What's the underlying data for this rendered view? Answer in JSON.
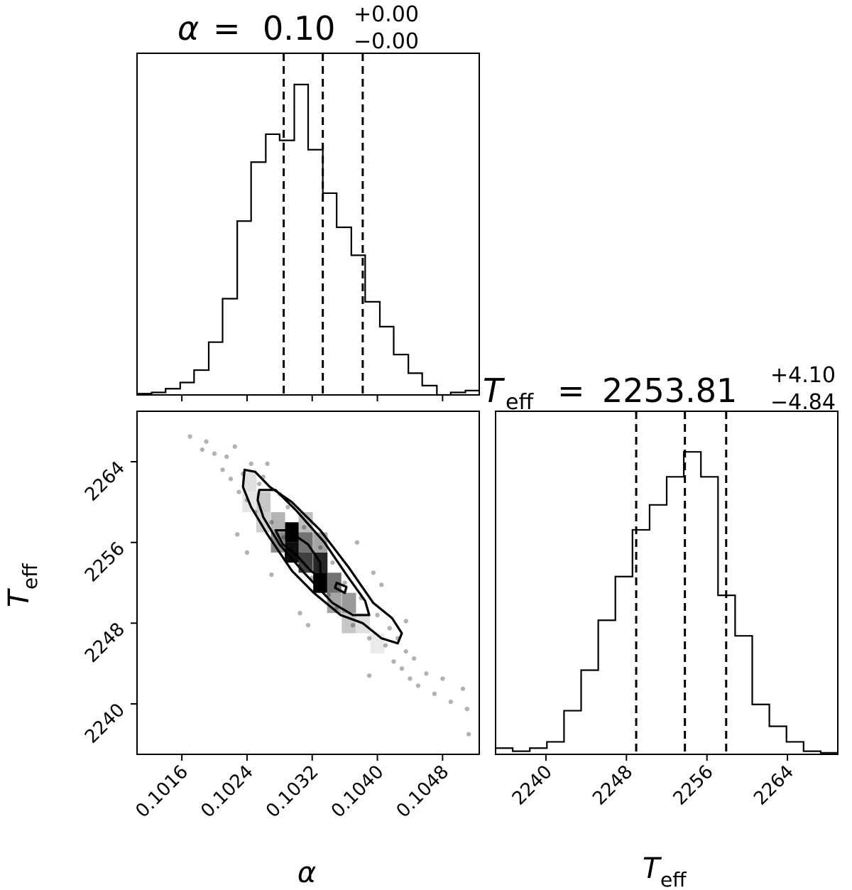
{
  "chart_data": [
    {
      "panel": "alpha-histogram",
      "type": "histogram",
      "title": {
        "symbol": "α",
        "value": "0.10",
        "plus": "+0.00",
        "minus": "−0.00"
      },
      "xlim": [
        0.10105,
        0.10525
      ],
      "ylim": [
        0,
        1.0
      ],
      "bin_edges": [
        0.10105,
        0.10123,
        0.1014,
        0.10158,
        0.10175,
        0.10193,
        0.1021,
        0.10228,
        0.10245,
        0.10263,
        0.1028,
        0.10298,
        0.10315,
        0.10333,
        0.1035,
        0.10368,
        0.10385,
        0.10403,
        0.1042,
        0.10438,
        0.10455,
        0.10473,
        0.1049,
        0.10508,
        0.10525
      ],
      "counts": [
        0.004,
        0.008,
        0.02,
        0.04,
        0.08,
        0.17,
        0.31,
        0.56,
        0.75,
        0.84,
        0.82,
        1.0,
        0.79,
        0.65,
        0.54,
        0.45,
        0.3,
        0.22,
        0.13,
        0.07,
        0.03,
        0.0,
        0.008,
        0.014
      ],
      "quantiles": [
        0.10285,
        0.10333,
        0.10382
      ],
      "xticks": [
        "0.1016",
        "0.1024",
        "0.1032",
        "0.1040",
        "0.1048"
      ],
      "tick_values": [
        0.1016,
        0.1024,
        0.1032,
        0.104,
        0.1048
      ]
    },
    {
      "panel": "alpha-teff-2d",
      "type": "scatter",
      "xlim": [
        0.10105,
        0.10525
      ],
      "ylim": [
        2235,
        2269
      ],
      "xlabel": {
        "symbol": "α"
      },
      "ylabel": {
        "symbol": "T",
        "sub": "eff"
      },
      "yticks": [
        "2240",
        "2248",
        "2256",
        "2264"
      ],
      "ytick_values": [
        2240,
        2248,
        2256,
        2264
      ],
      "xticks": [
        "0.1016",
        "0.1024",
        "0.1032",
        "0.1040",
        "0.1048"
      ],
      "xtick_values": [
        0.1016,
        0.1024,
        0.1032,
        0.104,
        0.1048
      ],
      "scatter_points": [
        [
          0.1017,
          2266.5
        ],
        [
          0.10185,
          2265.2
        ],
        [
          0.1019,
          2266.0
        ],
        [
          0.102,
          2264.8
        ],
        [
          0.1021,
          2263.2
        ],
        [
          0.10215,
          2264.5
        ],
        [
          0.1022,
          2262.3
        ],
        [
          0.10225,
          2265.5
        ],
        [
          0.1023,
          2261.0
        ],
        [
          0.10235,
          2262.8
        ],
        [
          0.1024,
          2260.2
        ],
        [
          0.10245,
          2263.8
        ],
        [
          0.1025,
          2259.0
        ],
        [
          0.10255,
          2261.8
        ],
        [
          0.1026,
          2262.5
        ],
        [
          0.1027,
          2258.0
        ],
        [
          0.1028,
          2260.8
        ],
        [
          0.10285,
          2256.5
        ],
        [
          0.1029,
          2259.5
        ],
        [
          0.103,
          2254.8
        ],
        [
          0.1031,
          2257.5
        ],
        [
          0.1032,
          2252.5
        ],
        [
          0.1033,
          2255.5
        ],
        [
          0.1034,
          2250.8
        ],
        [
          0.10345,
          2254.0
        ],
        [
          0.1035,
          2249.5
        ],
        [
          0.1036,
          2252.0
        ],
        [
          0.1037,
          2247.8
        ],
        [
          0.1038,
          2250.5
        ],
        [
          0.1039,
          2246.5
        ],
        [
          0.104,
          2248.8
        ],
        [
          0.1041,
          2245.8
        ],
        [
          0.10415,
          2247.5
        ],
        [
          0.1042,
          2244.2
        ],
        [
          0.10425,
          2246.5
        ],
        [
          0.1043,
          2243.5
        ],
        [
          0.10435,
          2245.2
        ],
        [
          0.1044,
          2242.5
        ],
        [
          0.10445,
          2244.5
        ],
        [
          0.1045,
          2241.8
        ],
        [
          0.1046,
          2243.0
        ],
        [
          0.1047,
          2241.0
        ],
        [
          0.1048,
          2242.5
        ],
        [
          0.1049,
          2240.2
        ],
        [
          0.10505,
          2241.5
        ],
        [
          0.10512,
          2237.0
        ],
        [
          0.1051,
          2239.5
        ],
        [
          0.10228,
          2256.8
        ],
        [
          0.1024,
          2255.0
        ],
        [
          0.10265,
          2263.8
        ],
        [
          0.10375,
          2256.0
        ],
        [
          0.10395,
          2253.0
        ],
        [
          0.10405,
          2251.8
        ],
        [
          0.10305,
          2249.0
        ],
        [
          0.10315,
          2247.8
        ],
        [
          0.10435,
          2248.2
        ],
        [
          0.1027,
          2252.8
        ],
        [
          0.1039,
          2242.8
        ]
      ],
      "density_cells": [
        {
          "x": 0.10295,
          "y": 2257.0,
          "level": 1.0
        },
        {
          "x": 0.10295,
          "y": 2255.0,
          "level": 0.95
        },
        {
          "x": 0.10312,
          "y": 2256.0,
          "level": 0.55
        },
        {
          "x": 0.10312,
          "y": 2254.0,
          "level": 0.75
        },
        {
          "x": 0.1033,
          "y": 2254.0,
          "level": 0.85
        },
        {
          "x": 0.1033,
          "y": 2252.0,
          "level": 1.0
        },
        {
          "x": 0.10347,
          "y": 2252.0,
          "level": 0.55
        },
        {
          "x": 0.10347,
          "y": 2250.0,
          "level": 0.35
        },
        {
          "x": 0.10278,
          "y": 2256.0,
          "level": 0.45
        },
        {
          "x": 0.10278,
          "y": 2258.0,
          "level": 0.3
        },
        {
          "x": 0.1026,
          "y": 2260.0,
          "level": 0.22
        },
        {
          "x": 0.10243,
          "y": 2262.0,
          "level": 0.12
        },
        {
          "x": 0.10365,
          "y": 2248.0,
          "level": 0.22
        },
        {
          "x": 0.10382,
          "y": 2248.0,
          "level": 0.12
        },
        {
          "x": 0.104,
          "y": 2246.0,
          "level": 0.08
        },
        {
          "x": 0.10365,
          "y": 2250.0,
          "level": 0.4
        },
        {
          "x": 0.10312,
          "y": 2258.0,
          "level": 0.25
        },
        {
          "x": 0.1033,
          "y": 2256.0,
          "level": 0.35
        },
        {
          "x": 0.1026,
          "y": 2258.0,
          "level": 0.18
        },
        {
          "x": 0.10243,
          "y": 2260.0,
          "level": 0.1
        }
      ],
      "contours": [
        [
          [
            0.10237,
            2263.2
          ],
          [
            0.1025,
            2263.0
          ],
          [
            0.10268,
            2261.5
          ],
          [
            0.10295,
            2260.0
          ],
          [
            0.1033,
            2257.2
          ],
          [
            0.10365,
            2253.5
          ],
          [
            0.10395,
            2250.0
          ],
          [
            0.10418,
            2248.5
          ],
          [
            0.1043,
            2247.0
          ],
          [
            0.10425,
            2246.0
          ],
          [
            0.10405,
            2246.5
          ],
          [
            0.10382,
            2248.0
          ],
          [
            0.10355,
            2248.8
          ],
          [
            0.10322,
            2251.0
          ],
          [
            0.10295,
            2253.2
          ],
          [
            0.10265,
            2256.8
          ],
          [
            0.10245,
            2259.5
          ],
          [
            0.10235,
            2261.5
          ],
          [
            0.10237,
            2263.2
          ]
        ],
        [
          [
            0.10255,
            2261.2
          ],
          [
            0.10275,
            2261.2
          ],
          [
            0.103,
            2259.2
          ],
          [
            0.10335,
            2256.0
          ],
          [
            0.10362,
            2252.8
          ],
          [
            0.10385,
            2250.2
          ],
          [
            0.1039,
            2248.8
          ],
          [
            0.1037,
            2248.8
          ],
          [
            0.10345,
            2250.0
          ],
          [
            0.1031,
            2253.0
          ],
          [
            0.1028,
            2255.8
          ],
          [
            0.1026,
            2258.5
          ],
          [
            0.10253,
            2260.2
          ],
          [
            0.10255,
            2261.2
          ]
        ],
        [
          [
            0.10275,
            2257.2
          ],
          [
            0.1029,
            2257.2
          ],
          [
            0.10315,
            2255.8
          ],
          [
            0.1033,
            2254.0
          ],
          [
            0.1033,
            2252.5
          ],
          [
            0.10318,
            2253.2
          ],
          [
            0.103,
            2254.8
          ],
          [
            0.10284,
            2255.8
          ],
          [
            0.10275,
            2257.2
          ]
        ],
        [
          [
            0.1035,
            2252.0
          ],
          [
            0.10362,
            2251.6
          ],
          [
            0.1036,
            2251.0
          ],
          [
            0.10348,
            2251.5
          ],
          [
            0.1035,
            2252.0
          ]
        ]
      ]
    },
    {
      "panel": "teff-histogram",
      "type": "histogram",
      "title": {
        "symbol": "T",
        "sub": "eff",
        "value": "2253.81",
        "plus": "+4.10",
        "minus": "−4.84"
      },
      "xlim": [
        2235,
        2269
      ],
      "ylim": [
        0,
        1.0
      ],
      "xlabel": {
        "symbol": "T",
        "sub": "eff"
      },
      "bin_edges": [
        2235,
        2236.7,
        2238.4,
        2240.1,
        2241.8,
        2243.5,
        2245.2,
        2246.9,
        2248.6,
        2250.3,
        2252.0,
        2253.7,
        2255.4,
        2257.1,
        2258.8,
        2260.5,
        2262.2,
        2263.9,
        2265.6,
        2267.3,
        2269
      ],
      "counts": [
        0.02,
        0.01,
        0.02,
        0.04,
        0.14,
        0.27,
        0.43,
        0.57,
        0.72,
        0.8,
        0.89,
        0.97,
        0.89,
        0.51,
        0.38,
        0.16,
        0.09,
        0.04,
        0.01,
        0.005
      ],
      "quantiles": [
        2248.97,
        2253.81,
        2257.91
      ],
      "xticks": [
        "2240",
        "2248",
        "2256",
        "2264"
      ],
      "tick_values": [
        2240,
        2248,
        2256,
        2264
      ]
    }
  ]
}
